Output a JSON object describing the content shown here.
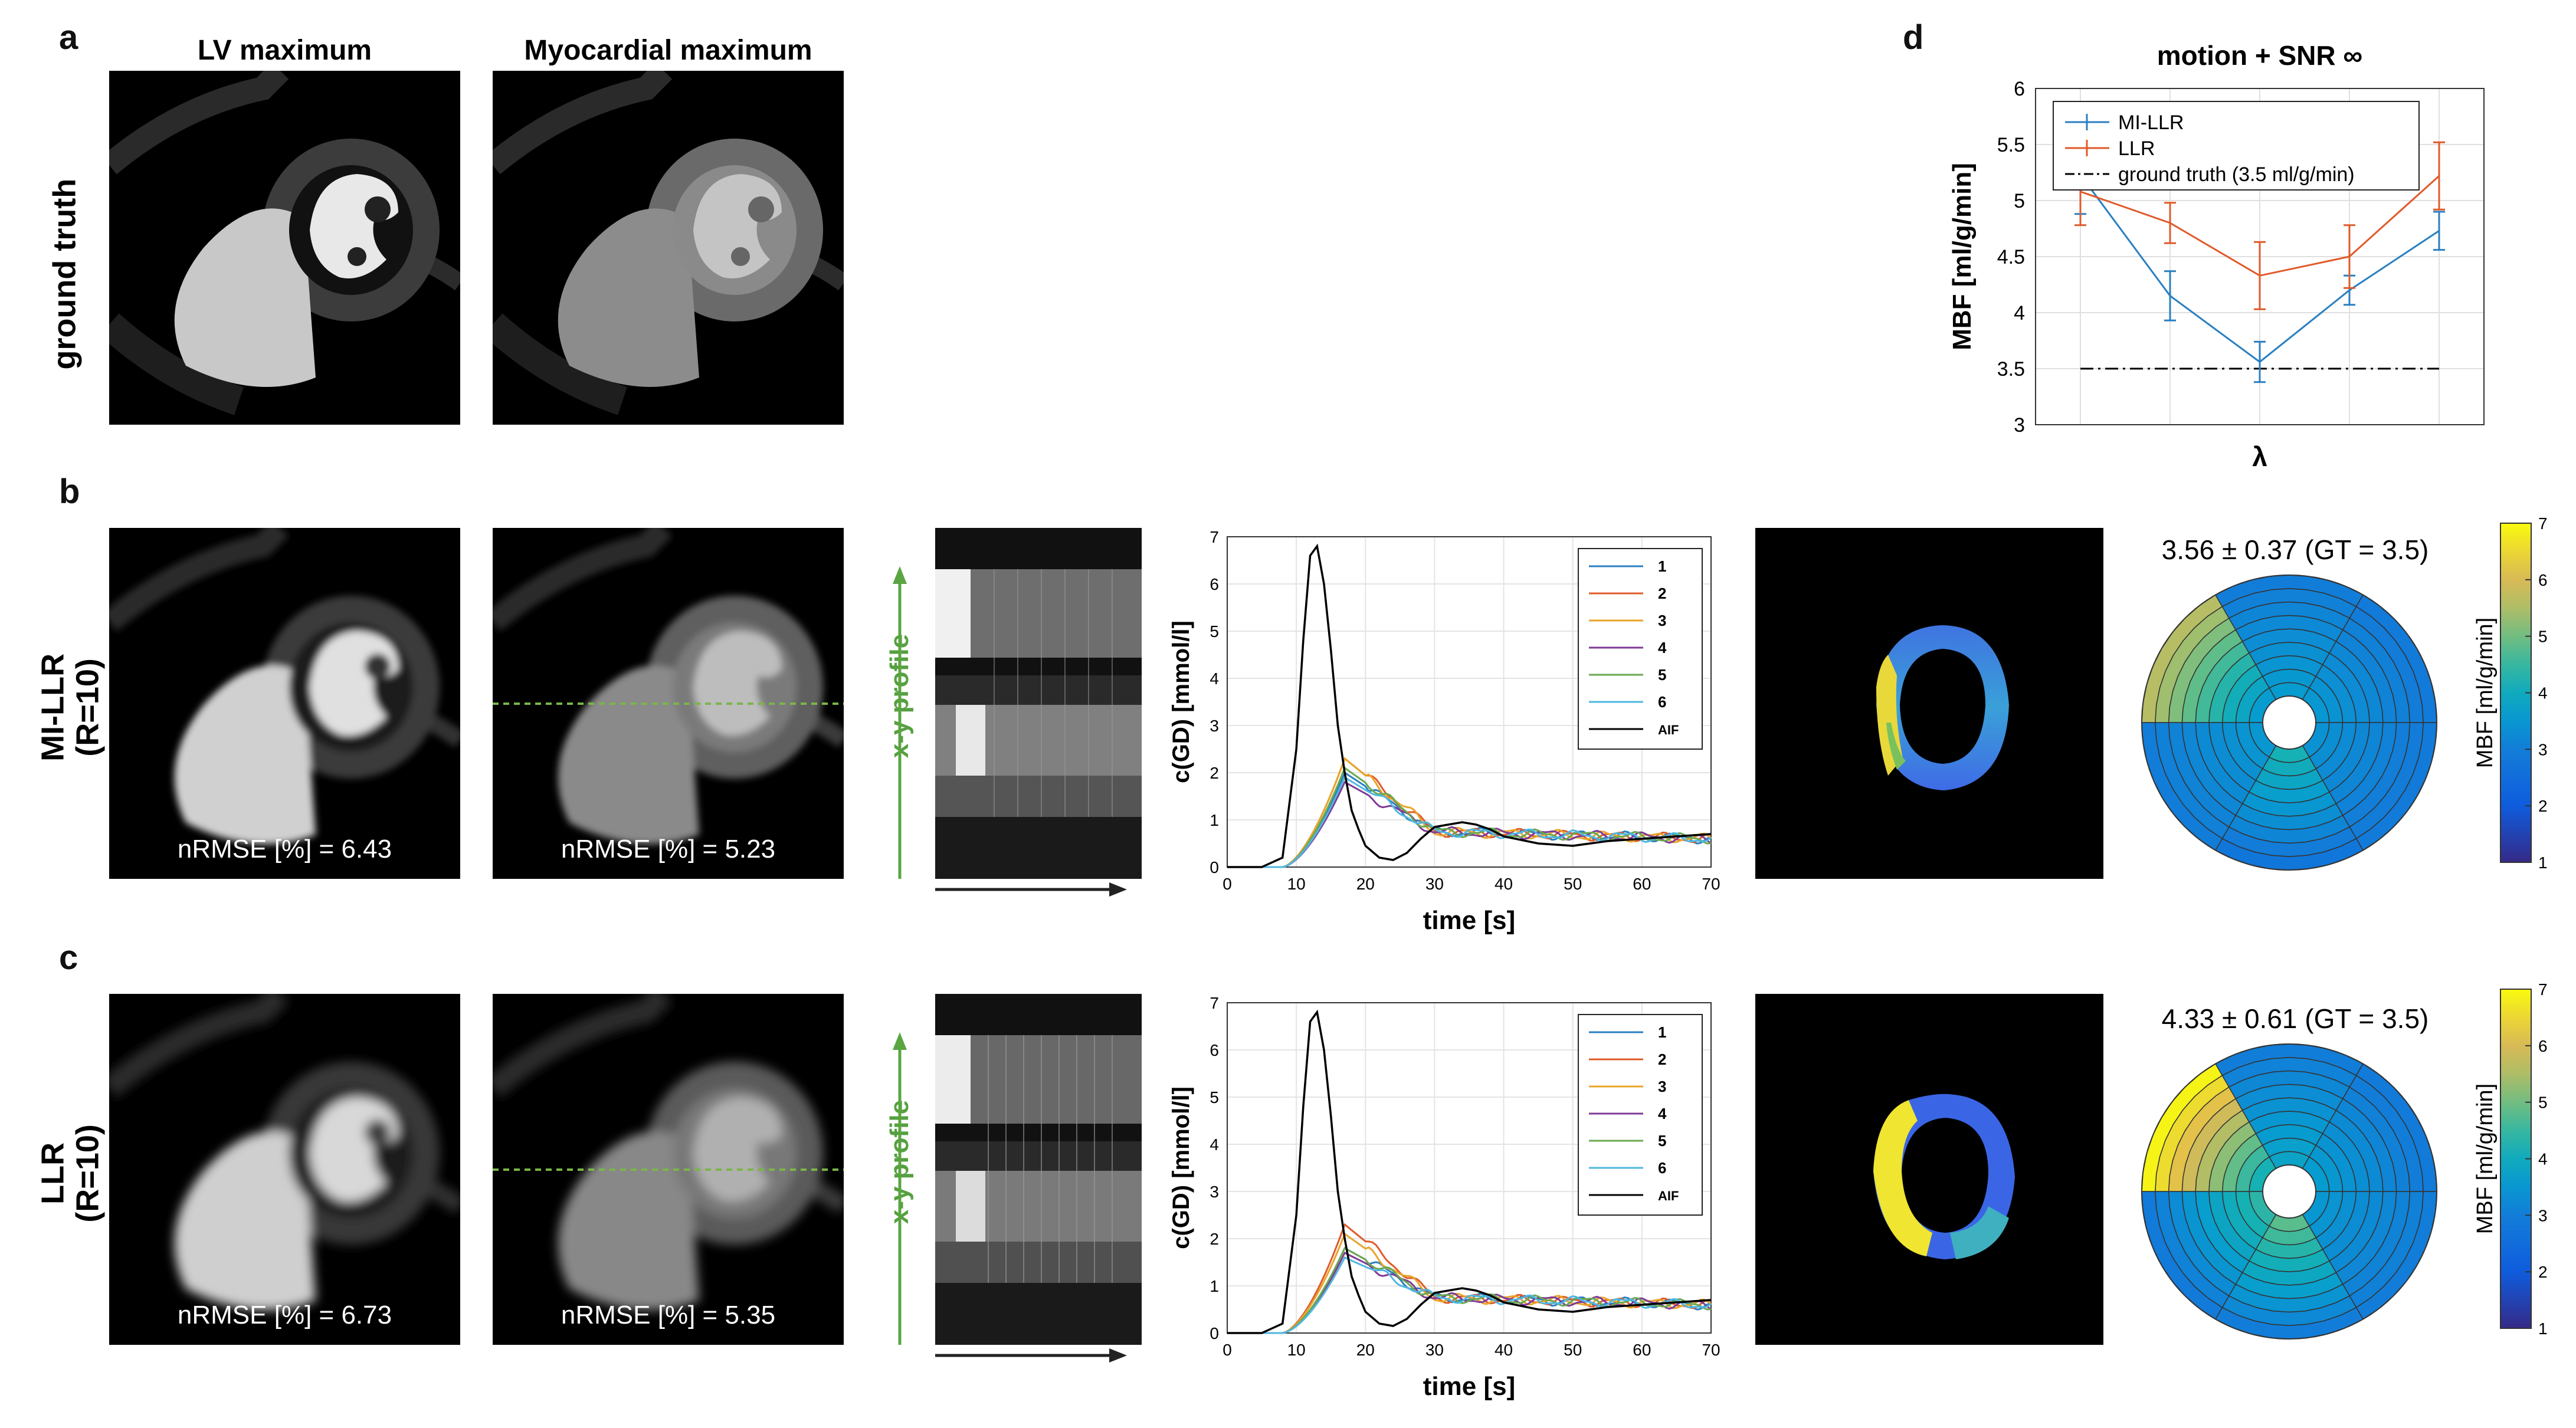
{
  "labels": {
    "a": "a",
    "b": "b",
    "c": "c",
    "d": "d",
    "lv_max": "LV maximum",
    "myo_max": "Myocardial maximum",
    "ground_truth": "ground truth",
    "mi_llr_1": "MI-LLR",
    "mi_llr_2": "(R=10)",
    "llr_1": "LLR",
    "llr_2": "(R=10)",
    "xy_profile": "x-y profile"
  },
  "metrics": {
    "b_lv": "nRMSE [%] = 6.43",
    "b_myo": "nRMSE [%] = 5.23",
    "c_lv": "nRMSE [%] = 6.73",
    "c_myo": "nRMSE [%] = 5.35"
  },
  "bullseye": {
    "b_title": "3.56 ± 0.37 (GT = 3.5)",
    "c_title": "4.33 ± 0.61 (GT = 3.5)",
    "colorbar_label": "MBF [ml/g/min]",
    "colorbar_ticks": [
      "1",
      "2",
      "3",
      "4",
      "5",
      "6",
      "7"
    ]
  },
  "chart_data": [
    {
      "id": "d",
      "type": "line",
      "title": "motion + SNR ∞",
      "xlabel": "λ",
      "ylabel": "MBF [ml/g/min]",
      "ylim": [
        3,
        6
      ],
      "yticks": [
        "3",
        "3.5",
        "4",
        "4.5",
        "5",
        "5.5",
        "6"
      ],
      "x": [
        1,
        2,
        3,
        4,
        5
      ],
      "grid": true,
      "legend_position": "top-left",
      "series": [
        {
          "name": "MI-LLR",
          "color": "#2a7fc0",
          "values": [
            5.23,
            4.15,
            3.56,
            4.2,
            4.73
          ],
          "errors": [
            0.35,
            0.22,
            0.18,
            0.13,
            0.17
          ]
        },
        {
          "name": "LLR",
          "color": "#e05a2a",
          "values": [
            5.08,
            4.8,
            4.33,
            4.5,
            5.22
          ],
          "errors": [
            0.3,
            0.18,
            0.3,
            0.28,
            0.3
          ]
        }
      ],
      "reference": {
        "name": "ground truth (3.5 ml/g/min)",
        "value": 3.5,
        "color": "#000000"
      }
    },
    {
      "id": "b",
      "type": "line",
      "xlabel": "time [s]",
      "ylabel": "c(GD) [mmol/l]",
      "xlim": [
        0,
        70
      ],
      "ylim": [
        0,
        7
      ],
      "xticks": [
        "0",
        "10",
        "20",
        "30",
        "40",
        "50",
        "60",
        "70"
      ],
      "yticks": [
        "0",
        "1",
        "2",
        "3",
        "4",
        "5",
        "6",
        "7"
      ],
      "grid": true,
      "legend_position": "top-right",
      "series": [
        {
          "name": "1",
          "color": "#2a7fc0"
        },
        {
          "name": "2",
          "color": "#e05a2a"
        },
        {
          "name": "3",
          "color": "#e8a52a"
        },
        {
          "name": "4",
          "color": "#7e3a96"
        },
        {
          "name": "5",
          "color": "#6aa84f"
        },
        {
          "name": "6",
          "color": "#4fb7e0"
        },
        {
          "name": "AIF",
          "color": "#000000"
        }
      ],
      "aif": {
        "t": [
          0,
          5,
          8,
          10,
          11,
          12,
          13,
          14,
          15,
          16,
          17,
          18,
          19,
          20,
          22,
          24,
          26,
          28,
          30,
          32,
          34,
          36,
          38,
          40,
          45,
          50,
          55,
          60,
          65,
          70
        ],
        "c": [
          0,
          0,
          0.2,
          2.5,
          4.8,
          6.6,
          6.8,
          6.0,
          4.6,
          3.0,
          2.0,
          1.2,
          0.8,
          0.45,
          0.2,
          0.15,
          0.3,
          0.6,
          0.85,
          0.9,
          0.95,
          0.9,
          0.8,
          0.65,
          0.5,
          0.45,
          0.55,
          0.6,
          0.65,
          0.7
        ]
      },
      "tissue_peaks": [
        2.0,
        2.3,
        2.3,
        1.8,
        2.1,
        1.9
      ]
    },
    {
      "id": "c",
      "type": "line",
      "xlabel": "time [s]",
      "ylabel": "c(GD) [mmol/l]",
      "xlim": [
        0,
        70
      ],
      "ylim": [
        0,
        7
      ],
      "xticks": [
        "0",
        "10",
        "20",
        "30",
        "40",
        "50",
        "60",
        "70"
      ],
      "yticks": [
        "0",
        "1",
        "2",
        "3",
        "4",
        "5",
        "6",
        "7"
      ],
      "grid": true,
      "legend_position": "top-right",
      "series": [
        {
          "name": "1",
          "color": "#2a7fc0"
        },
        {
          "name": "2",
          "color": "#e05a2a"
        },
        {
          "name": "3",
          "color": "#e8a52a"
        },
        {
          "name": "4",
          "color": "#7e3a96"
        },
        {
          "name": "5",
          "color": "#6aa84f"
        },
        {
          "name": "6",
          "color": "#4fb7e0"
        },
        {
          "name": "AIF",
          "color": "#000000"
        }
      ],
      "aif": {
        "t": [
          0,
          5,
          8,
          10,
          11,
          12,
          13,
          14,
          15,
          16,
          17,
          18,
          19,
          20,
          22,
          24,
          26,
          28,
          30,
          32,
          34,
          36,
          38,
          40,
          45,
          50,
          55,
          60,
          65,
          70
        ],
        "c": [
          0,
          0,
          0.2,
          2.5,
          4.8,
          6.6,
          6.8,
          6.0,
          4.6,
          3.0,
          2.0,
          1.2,
          0.8,
          0.45,
          0.2,
          0.15,
          0.3,
          0.6,
          0.85,
          0.9,
          0.95,
          0.9,
          0.8,
          0.65,
          0.5,
          0.45,
          0.55,
          0.6,
          0.65,
          0.7
        ]
      },
      "tissue_peaks": [
        1.8,
        2.3,
        2.1,
        1.7,
        1.8,
        1.6
      ]
    }
  ]
}
